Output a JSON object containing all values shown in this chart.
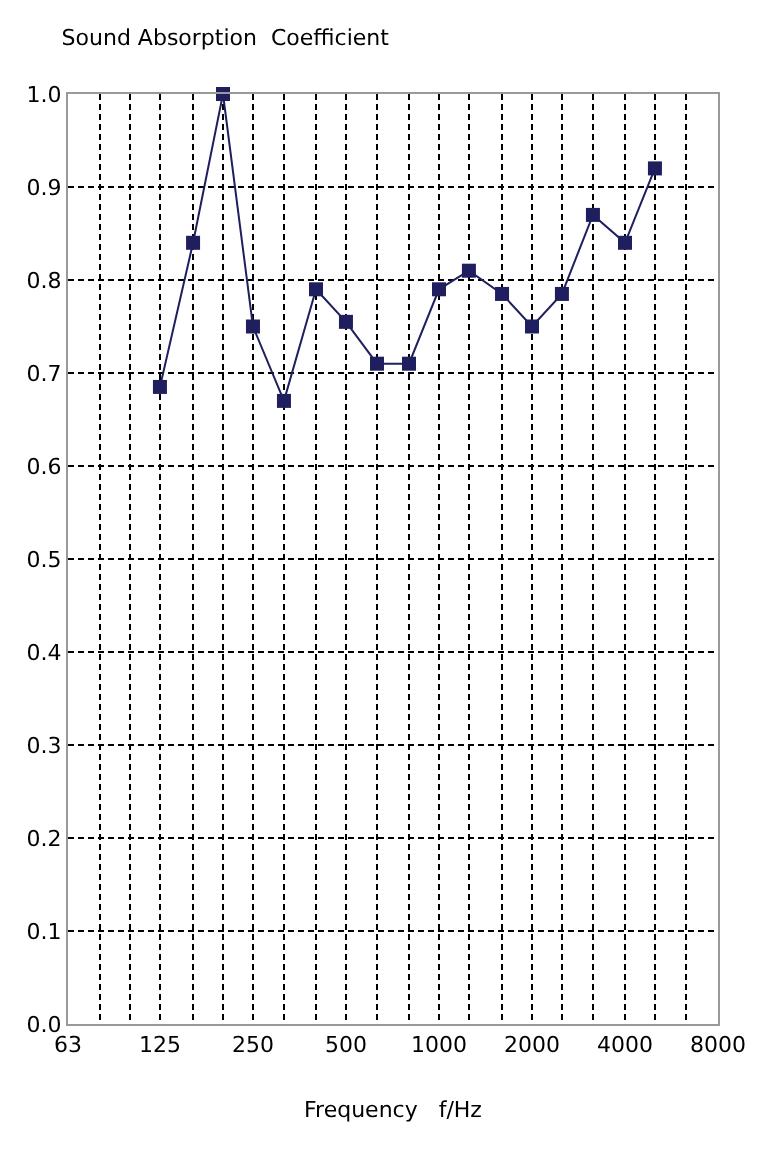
{
  "chart_data": {
    "type": "line",
    "title": "Sound Absorption  Coefficient",
    "xlabel": "Frequency   f/Hz",
    "x": [
      125,
      160,
      200,
      250,
      315,
      400,
      500,
      630,
      800,
      1000,
      1250,
      1600,
      2000,
      2500,
      3150,
      4000,
      5000
    ],
    "series": [
      {
        "color": "#1f1f5f",
        "values": [
          0.685,
          0.84,
          1.0,
          0.75,
          0.67,
          0.79,
          0.755,
          0.71,
          0.71,
          0.79,
          0.81,
          0.785,
          0.75,
          0.785,
          0.87,
          0.84,
          0.92
        ]
      }
    ],
    "log": "x",
    "xlim": [
      63,
      8000
    ],
    "xticks": [
      63,
      {
        "value": 80,
        "label": null
      },
      {
        "value": 100,
        "label": null
      },
      125,
      {
        "value": 160,
        "label": null
      },
      {
        "value": 200,
        "label": null
      },
      250,
      {
        "value": 315,
        "label": null
      },
      {
        "value": 400,
        "label": null
      },
      500,
      {
        "value": 630,
        "label": null
      },
      {
        "value": 800,
        "label": null
      },
      1000,
      {
        "value": 1250,
        "label": null
      },
      {
        "value": 1600,
        "label": null
      },
      2000,
      {
        "value": 2500,
        "label": null
      },
      {
        "value": 3150,
        "label": null
      },
      4000,
      {
        "value": 5000,
        "label": null
      },
      {
        "value": 6300,
        "label": null
      },
      8000
    ],
    "ylim": [
      0,
      1
    ],
    "yticks": [
      {
        "value": 0,
        "label": "0.0"
      },
      0.1,
      0.2,
      0.3,
      0.4,
      0.5,
      0.6,
      0.7,
      0.8,
      0.9,
      {
        "value": 1,
        "label": "1.0"
      }
    ],
    "grid": true,
    "marker": "square",
    "line_style": "solid"
  }
}
